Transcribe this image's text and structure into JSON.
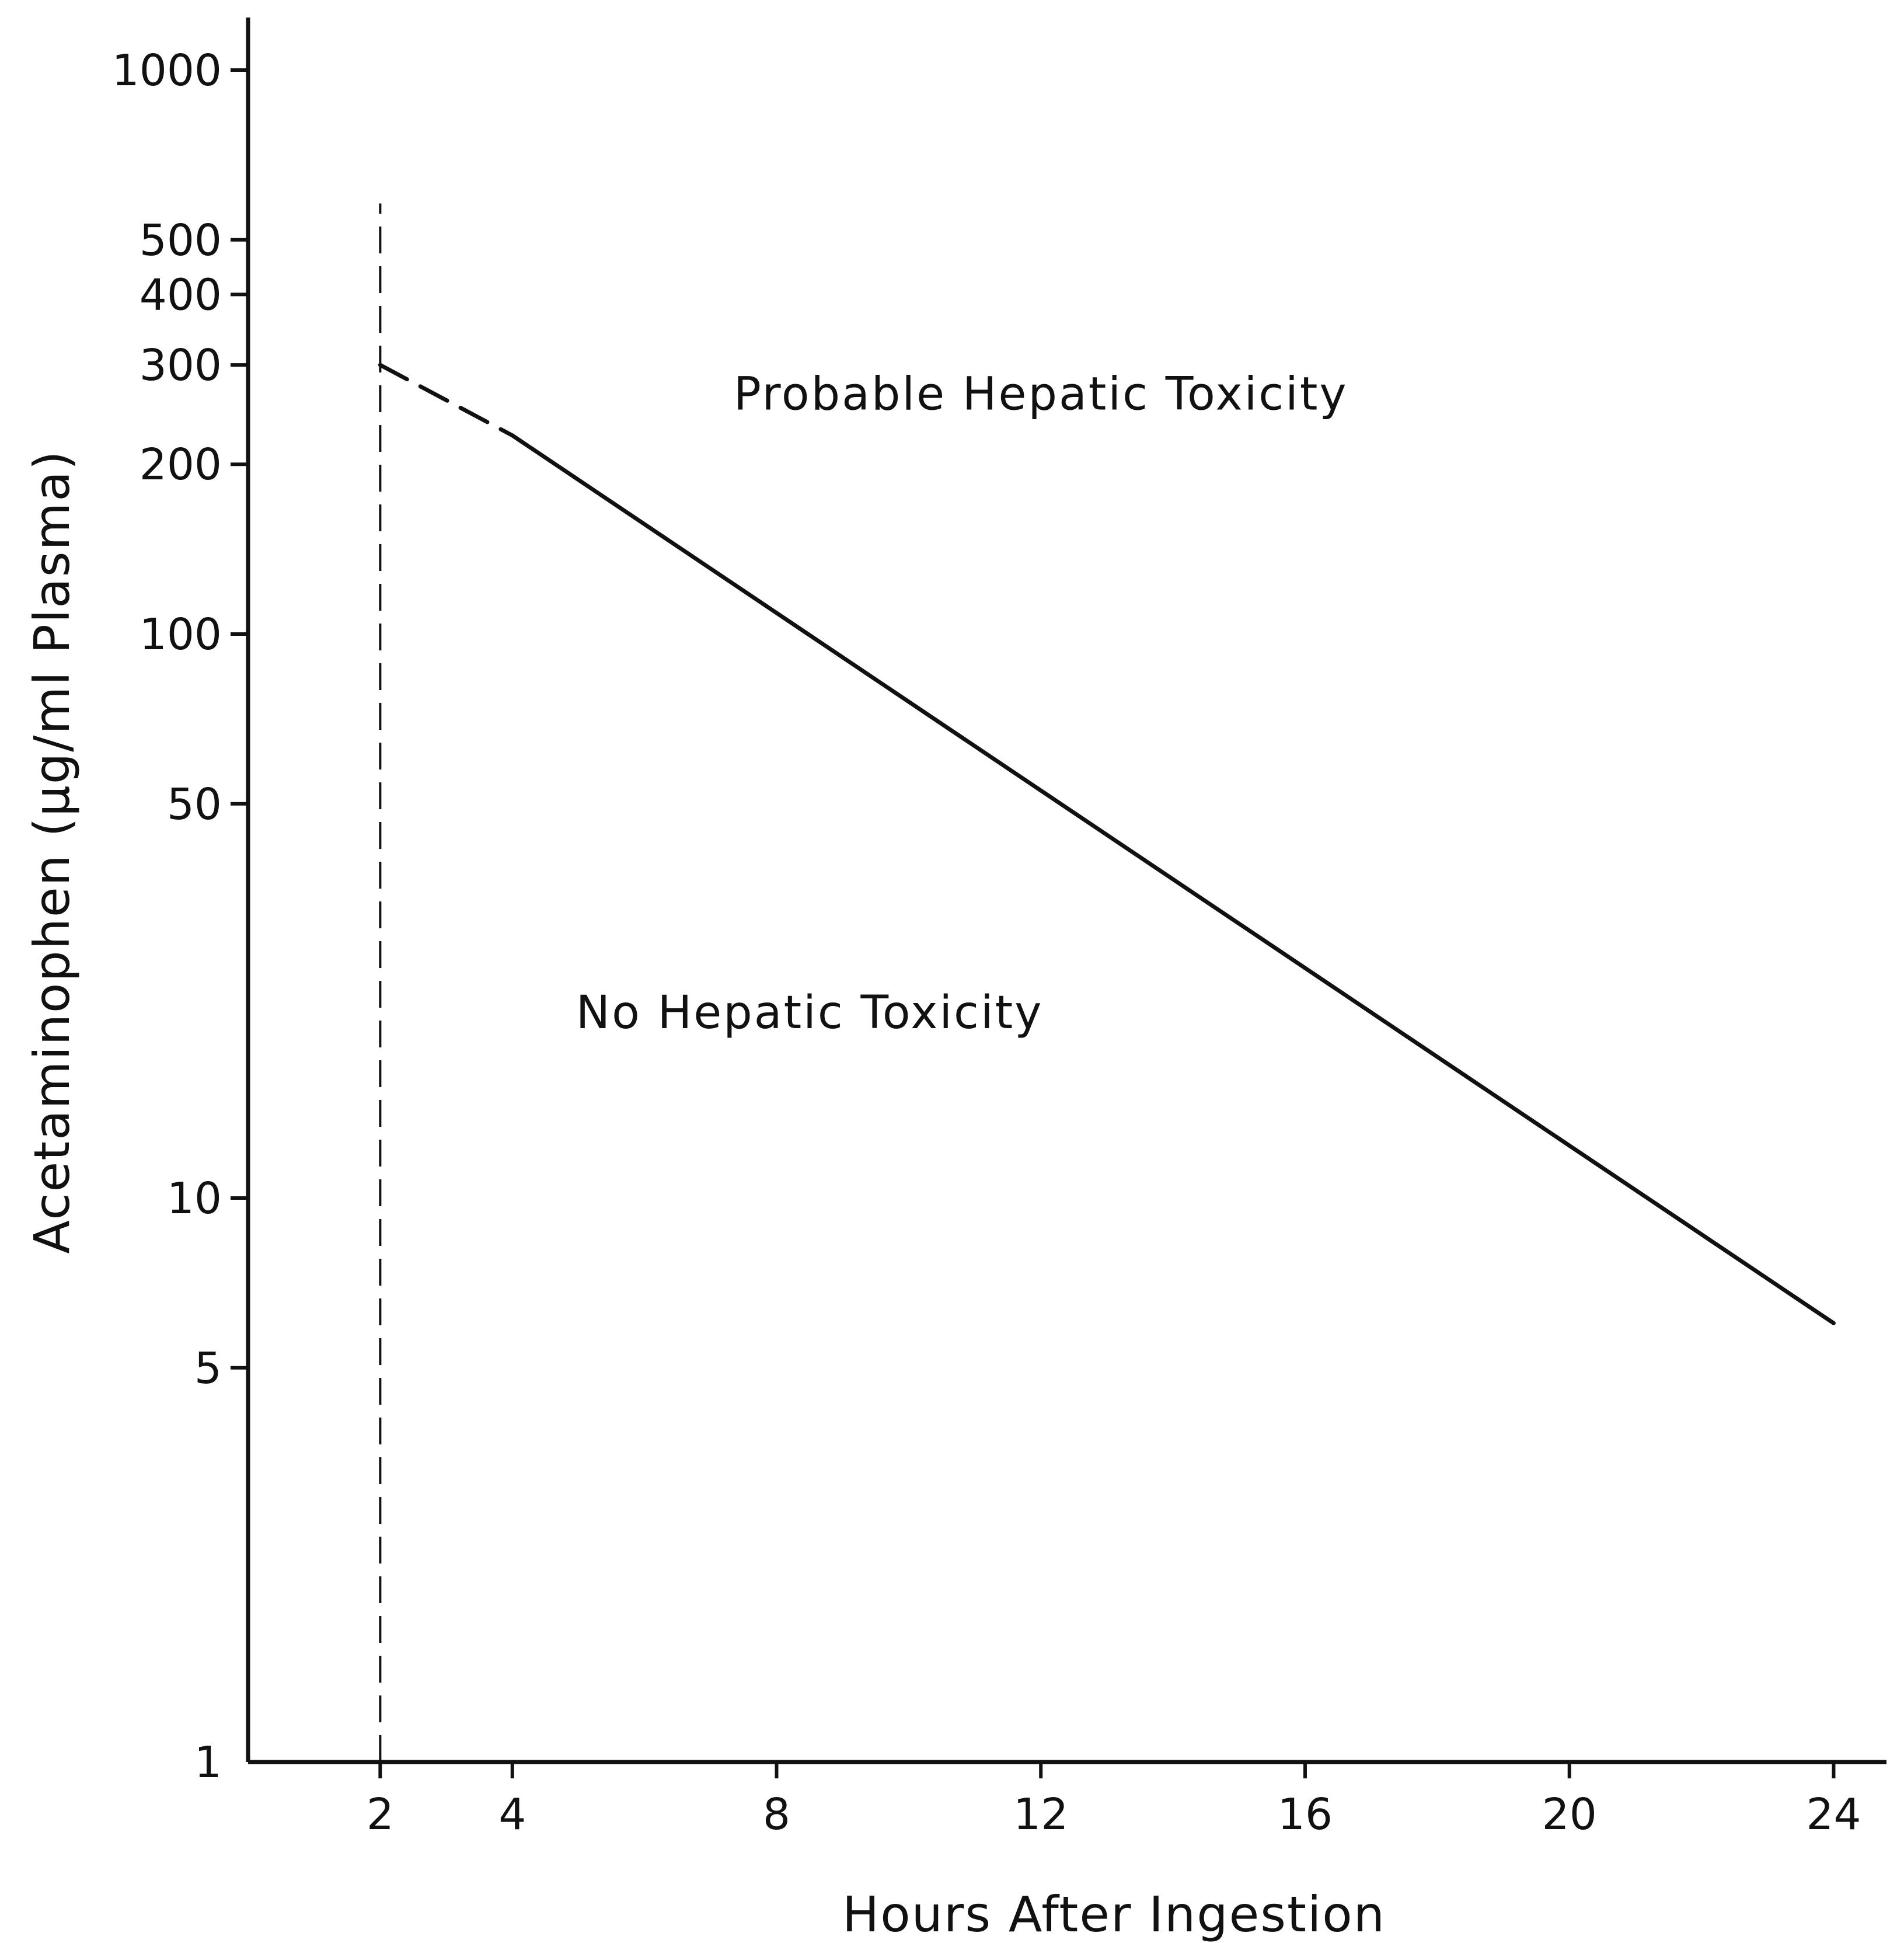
{
  "chart_data": {
    "type": "line",
    "xlabel": "Hours After Ingestion",
    "ylabel": "Acetaminophen (μg/ml Plasma)",
    "y_scale": "log",
    "xlim": [
      0,
      24.8
    ],
    "ylim": [
      1,
      1000
    ],
    "x_ticks": [
      2,
      4,
      8,
      12,
      16,
      20,
      24
    ],
    "y_ticks": [
      1,
      5,
      10,
      50,
      100,
      200,
      300,
      400,
      500,
      1000
    ],
    "grid": false,
    "legend": "none",
    "series": [
      {
        "style": "dashed",
        "points": [
          {
            "x": 2,
            "y": 300
          },
          {
            "x": 4,
            "y": 225
          }
        ]
      },
      {
        "style": "solid",
        "points": [
          {
            "x": 4,
            "y": 225
          },
          {
            "x": 24,
            "y": 6
          }
        ]
      }
    ],
    "vertical_lines": [
      {
        "x": 2,
        "y_from": 1,
        "y_to": 580,
        "style": "dashed"
      }
    ],
    "annotations": [
      {
        "text": "Probable Hepatic Toxicity",
        "x": 12,
        "y": 250
      },
      {
        "text": "No Hepatic Toxicity",
        "x": 8.5,
        "y": 20
      }
    ]
  }
}
